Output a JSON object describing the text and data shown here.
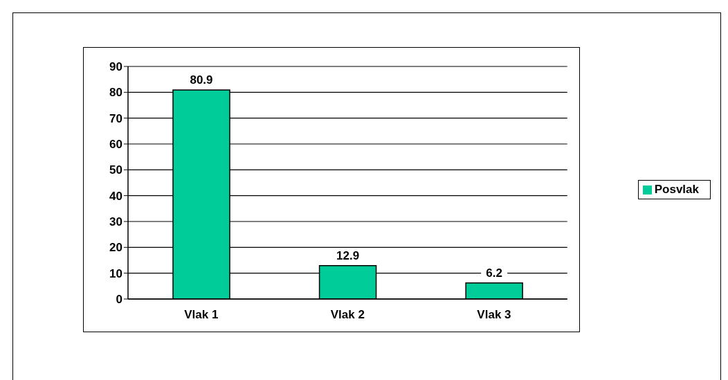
{
  "chart_data": {
    "type": "bar",
    "categories": [
      "Vlak 1",
      "Vlak 2",
      "Vlak 3"
    ],
    "series": [
      {
        "name": "Posvlak",
        "color": "#00cc99",
        "values": [
          80.9,
          12.9,
          6.2
        ]
      }
    ],
    "ylim": [
      0,
      90
    ],
    "yticks": [
      0,
      10,
      20,
      30,
      40,
      50,
      60,
      70,
      80,
      90
    ],
    "grid": "y",
    "legend": "right",
    "data_labels": true
  }
}
